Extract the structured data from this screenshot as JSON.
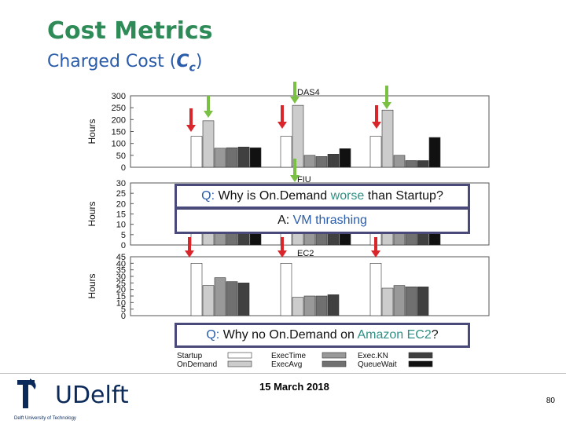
{
  "slide": {
    "title": "Cost Metrics",
    "subtitle_prefix": "Charged Cost (",
    "subtitle_symbol": "C",
    "subtitle_sub": "c",
    "subtitle_suffix": ")",
    "date": "15 March 2018",
    "page_number": "80",
    "logo_text": "UDelft",
    "logo_tag": "Delft University of Technology"
  },
  "callouts": [
    {
      "label": "Q:",
      "text_a": " Why is On.Demand ",
      "highlight": "worse",
      "text_b": " than Startup?"
    },
    {
      "label": "A:",
      "text_a": " ",
      "highlight": "VM thrashing",
      "text_b": ""
    },
    {
      "label": "Q:",
      "text_a": " Why no On.Demand on ",
      "highlight": "Amazon EC2",
      "text_b": "?"
    }
  ],
  "colors": {
    "title": "#2e8b57",
    "accent": "#2a5caa",
    "highlight": "#2f8f84",
    "green_arrow": "#7ac143",
    "red_arrow": "#d9262b",
    "callout_border": "#4a4a7a"
  },
  "chart_data": [
    {
      "type": "bar",
      "title": "DAS4",
      "ylabel": "Hours",
      "ylim": [
        0,
        300
      ],
      "yticks": [
        "0",
        "50",
        "100",
        "150",
        "200",
        "250",
        "300"
      ],
      "series": [
        {
          "name": "Startup",
          "values": [
            130,
            130,
            130
          ]
        },
        {
          "name": "OnDemand",
          "values": [
            195,
            260,
            240
          ]
        },
        {
          "name": "ExecTime",
          "values": [
            80,
            50,
            50
          ]
        },
        {
          "name": "ExecAvg",
          "values": [
            82,
            45,
            28
          ]
        },
        {
          "name": "ExecKN",
          "values": [
            85,
            55,
            28
          ]
        },
        {
          "name": "QueueWait",
          "values": [
            82,
            78,
            125
          ]
        }
      ]
    },
    {
      "type": "bar",
      "title": "FIU",
      "ylabel": "Hours",
      "ylim": [
        0,
        30
      ],
      "yticks": [
        "0",
        "5",
        "10",
        "15",
        "20",
        "25",
        "30"
      ],
      "series": [
        {
          "name": "Startup",
          "values": [
            15,
            15,
            15
          ]
        },
        {
          "name": "OnDemand",
          "values": [
            28,
            28,
            28
          ]
        },
        {
          "name": "ExecTime",
          "values": [
            9,
            9,
            9
          ]
        },
        {
          "name": "ExecAvg",
          "values": [
            9,
            9,
            9
          ]
        },
        {
          "name": "ExecKN",
          "values": [
            9,
            9,
            9
          ]
        },
        {
          "name": "QueueWait",
          "values": [
            9,
            9,
            9
          ]
        }
      ]
    },
    {
      "type": "bar",
      "title": "EC2",
      "ylabel": "Hours",
      "ylim": [
        0,
        45
      ],
      "yticks": [
        "0",
        "5",
        "10",
        "15",
        "20",
        "25",
        "30",
        "35",
        "40",
        "45"
      ],
      "series": [
        {
          "name": "Startup",
          "values": [
            40,
            40,
            40
          ]
        },
        {
          "name": "OnDemand",
          "values": [
            23,
            14,
            21
          ]
        },
        {
          "name": "ExecTime",
          "values": [
            29,
            15,
            23
          ]
        },
        {
          "name": "ExecAvg",
          "values": [
            26,
            15,
            22
          ]
        },
        {
          "name": "ExecKN",
          "values": [
            25,
            16,
            22
          ]
        },
        {
          "name": "QueueWait",
          "values": [
            0,
            0,
            0
          ]
        }
      ]
    }
  ],
  "legend": [
    {
      "name": "Startup",
      "color": "#ffffff"
    },
    {
      "name": "OnDemand",
      "color": "#cccccc"
    },
    {
      "name": "ExecTime",
      "color": "#999999"
    },
    {
      "name": "ExecAvg",
      "color": "#707070"
    },
    {
      "name": "Exec.KN",
      "color": "#404040"
    },
    {
      "name": "QueueWait",
      "color": "#111111"
    }
  ]
}
